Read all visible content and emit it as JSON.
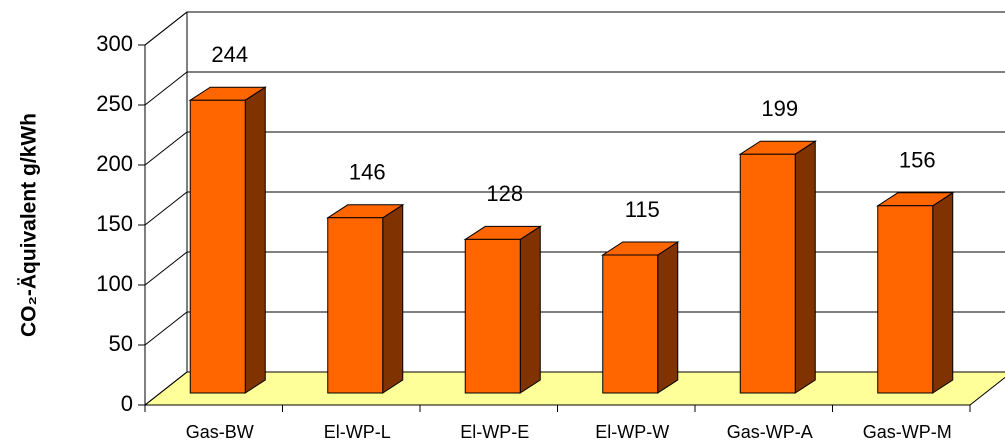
{
  "chart_data": {
    "type": "bar",
    "y_label": "CO₂-Äquivalent g/kWh",
    "categories": [
      "Gas-BW",
      "El-WP-L",
      "El-WP-E",
      "El-WP-W",
      "Gas-WP-A",
      "Gas-WP-M"
    ],
    "values": [
      244,
      146,
      128,
      115,
      199,
      156
    ],
    "color": "#ff6600",
    "side_color": "#803300",
    "floor_color": "#ffff99",
    "ylim": [
      0,
      300
    ],
    "yticks": [
      0,
      50,
      100,
      150,
      200,
      250,
      300
    ],
    "grid": true
  }
}
